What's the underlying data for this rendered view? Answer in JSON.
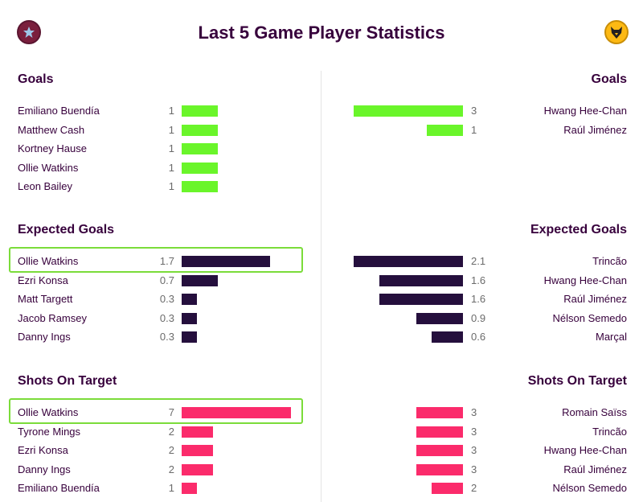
{
  "title": "Last 5 Game Player Statistics",
  "colors": {
    "goals": "#6af52a",
    "xg": "#250f3d",
    "shots": "#fb2b6b",
    "highlight": "#7bdc3a"
  },
  "home_badge_icon": "aston-villa-star-icon",
  "away_badge_icon": "wolves-head-icon",
  "chart_data": [
    {
      "type": "bar",
      "title": "Goals",
      "max": 3,
      "home": [
        {
          "name": "Emiliano Buendía",
          "value": 1
        },
        {
          "name": "Matthew Cash",
          "value": 1
        },
        {
          "name": "Kortney Hause",
          "value": 1
        },
        {
          "name": "Ollie Watkins",
          "value": 1
        },
        {
          "name": "Leon Bailey",
          "value": 1
        }
      ],
      "away": [
        {
          "name": "Hwang Hee-Chan",
          "value": 3
        },
        {
          "name": "Raúl Jiménez",
          "value": 1
        }
      ]
    },
    {
      "type": "bar",
      "title": "Expected Goals",
      "max": 2.1,
      "home": [
        {
          "name": "Ollie Watkins",
          "value": 1.7
        },
        {
          "name": "Ezri Konsa",
          "value": 0.7
        },
        {
          "name": "Matt Targett",
          "value": 0.3
        },
        {
          "name": "Jacob Ramsey",
          "value": 0.3
        },
        {
          "name": "Danny Ings",
          "value": 0.3
        }
      ],
      "away": [
        {
          "name": "Trincão",
          "value": 2.1
        },
        {
          "name": "Hwang Hee-Chan",
          "value": 1.6
        },
        {
          "name": "Raúl Jiménez",
          "value": 1.6
        },
        {
          "name": "Nélson Semedo",
          "value": 0.9
        },
        {
          "name": "Marçal",
          "value": 0.6
        }
      ]
    },
    {
      "type": "bar",
      "title": "Shots On Target",
      "max": 7,
      "home": [
        {
          "name": "Ollie Watkins",
          "value": 7
        },
        {
          "name": "Tyrone Mings",
          "value": 2
        },
        {
          "name": "Ezri Konsa",
          "value": 2
        },
        {
          "name": "Danny Ings",
          "value": 2
        },
        {
          "name": "Emiliano Buendía",
          "value": 1
        }
      ],
      "away": [
        {
          "name": "Romain Saïss",
          "value": 3
        },
        {
          "name": "Trincão",
          "value": 3
        },
        {
          "name": "Hwang Hee-Chan",
          "value": 3
        },
        {
          "name": "Raúl Jiménez",
          "value": 3
        },
        {
          "name": "Nélson Semedo",
          "value": 2
        }
      ]
    }
  ]
}
